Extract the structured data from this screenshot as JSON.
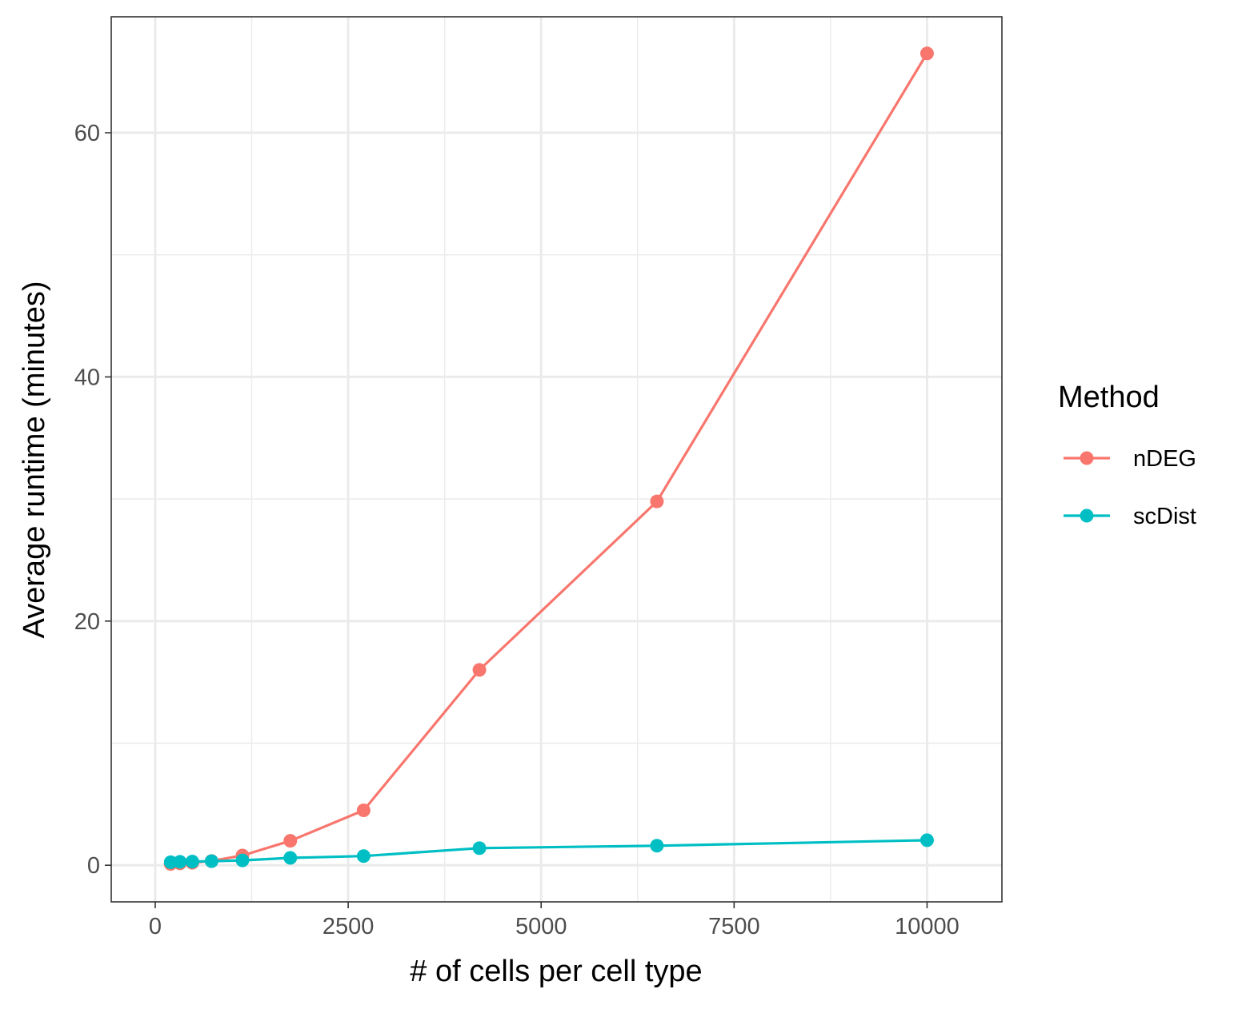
{
  "chart_data": {
    "type": "line",
    "xlabel": "# of cells per cell type",
    "ylabel": "Average runtime (minutes)",
    "xlim": [
      -570,
      10970
    ],
    "ylim": [
      -3,
      69.5
    ],
    "x_ticks": [
      0,
      2500,
      5000,
      7500,
      10000
    ],
    "x_tick_labels": [
      "0",
      "2500",
      "5000",
      "7500",
      "10000"
    ],
    "y_ticks": [
      0,
      20,
      40,
      60
    ],
    "y_tick_labels": [
      "0",
      "20",
      "40",
      "60"
    ],
    "grid": true,
    "legend": {
      "title": "Method",
      "position": "right"
    },
    "series": [
      {
        "name": "nDEG",
        "color": "#F8766D",
        "x": [
          200,
          320,
          480,
          730,
          1130,
          1750,
          2700,
          4200,
          6500,
          10000
        ],
        "y": [
          0.1,
          0.15,
          0.2,
          0.35,
          0.8,
          2.0,
          4.5,
          16.0,
          29.8,
          66.5
        ]
      },
      {
        "name": "scDist",
        "color": "#00BFC4",
        "x": [
          200,
          320,
          480,
          730,
          1130,
          1750,
          2700,
          4200,
          6500,
          10000
        ],
        "y": [
          0.25,
          0.28,
          0.3,
          0.33,
          0.4,
          0.6,
          0.75,
          1.4,
          1.6,
          2.05
        ]
      }
    ]
  }
}
